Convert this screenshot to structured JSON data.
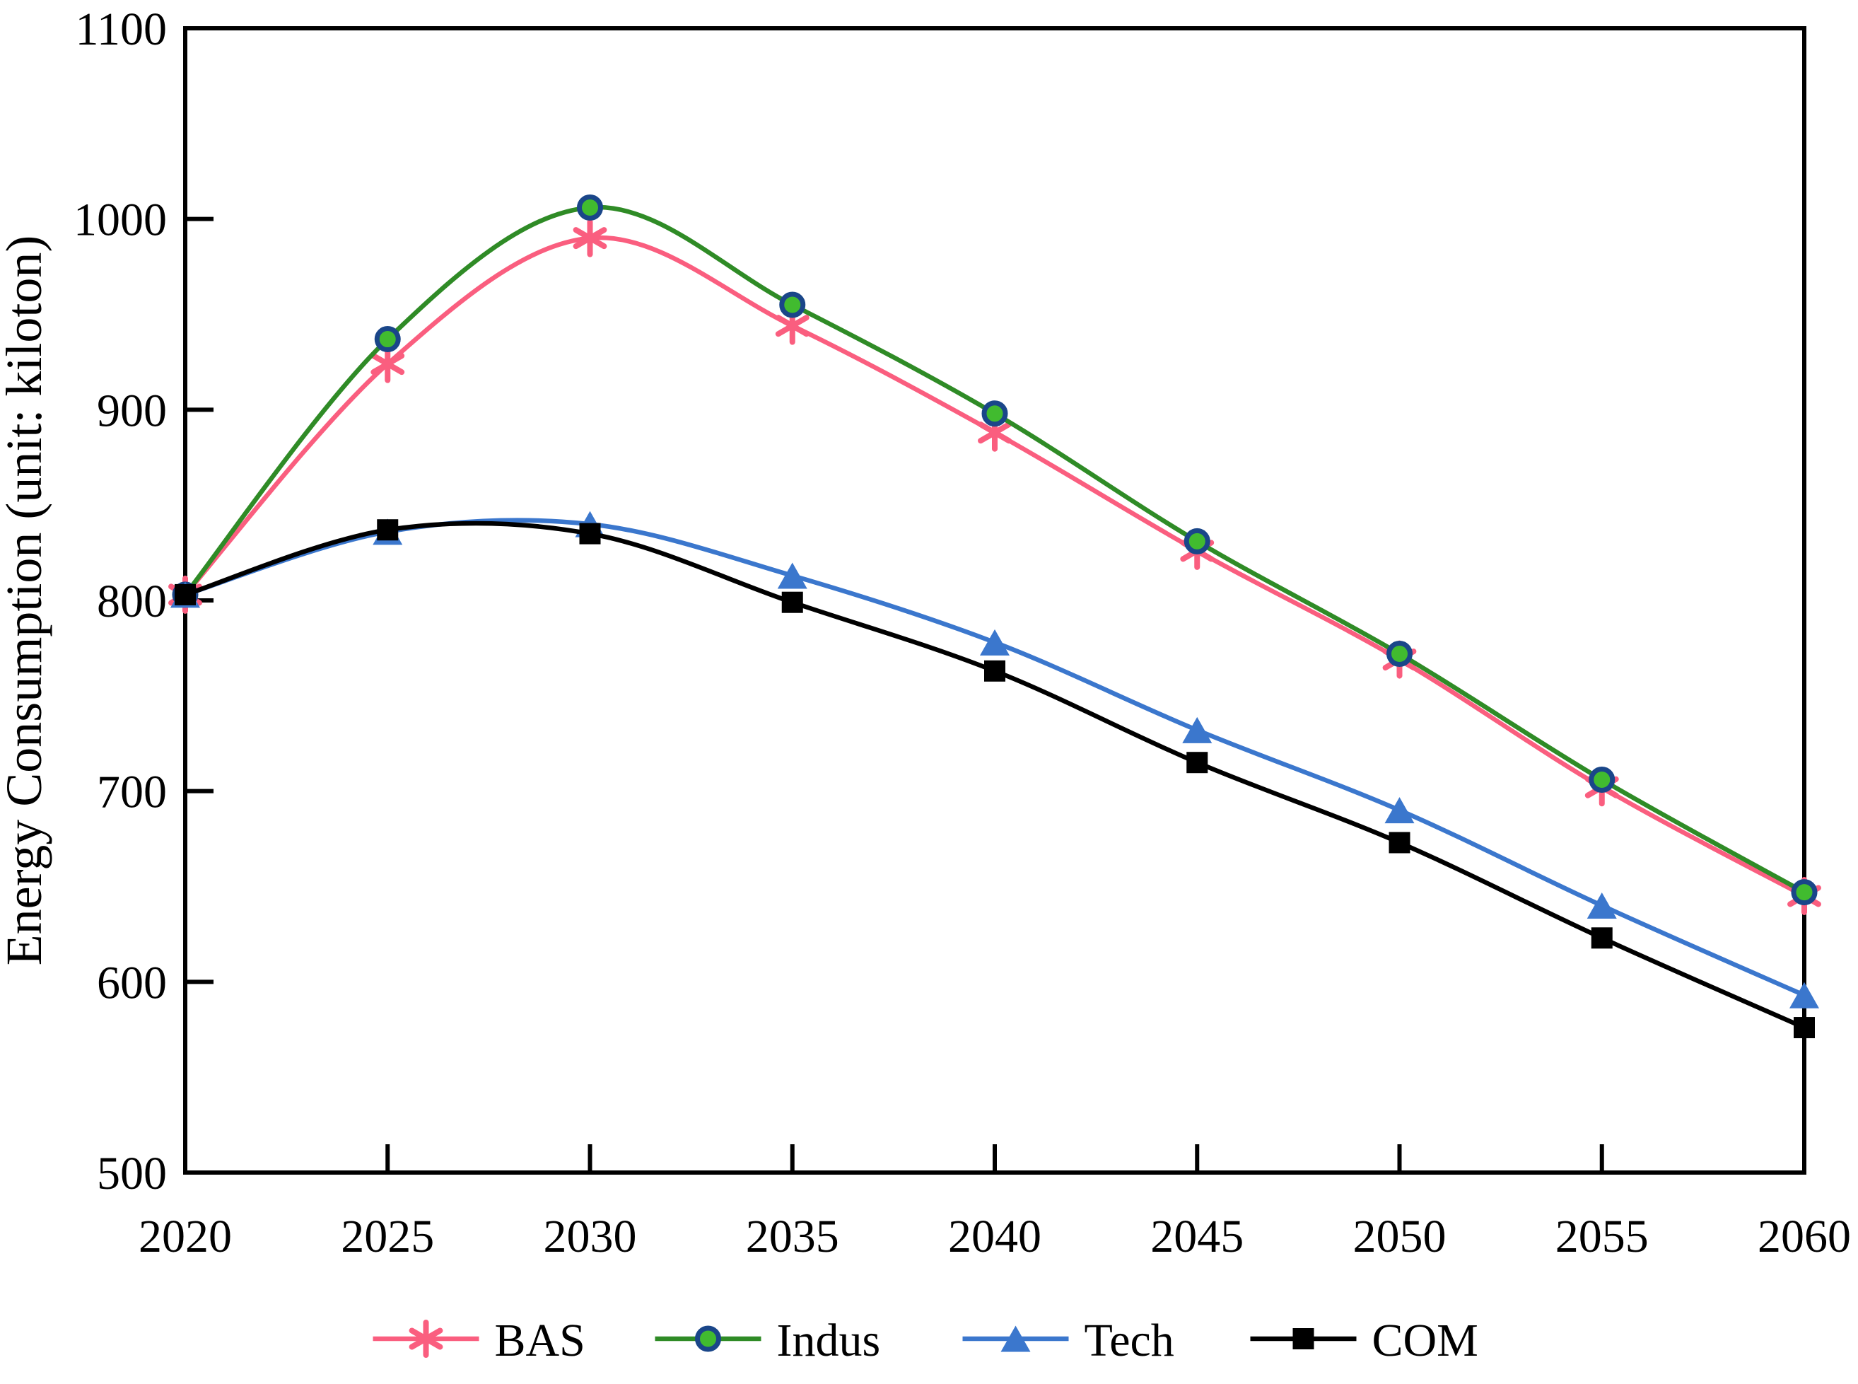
{
  "chart_data": {
    "type": "line",
    "title": "",
    "xlabel": "",
    "ylabel": "Energy Consumption (unit: kiloton)",
    "x": [
      2020,
      2025,
      2030,
      2035,
      2040,
      2045,
      2050,
      2055,
      2060
    ],
    "xlim": [
      2020,
      2060
    ],
    "ylim": [
      500,
      1100
    ],
    "ytick_interval": 100,
    "grid": false,
    "legend_position": "bottom-center",
    "frame": true,
    "tick_direction": "in",
    "series": [
      {
        "name": "BAS",
        "marker": "asterisk",
        "line_color": "#FA5E7F",
        "marker_color": "#FA5E7F",
        "values": [
          803,
          924,
          990,
          944,
          888,
          826,
          769,
          702,
          645
        ]
      },
      {
        "name": "Indus",
        "marker": "circle",
        "line_color": "#2F8B26",
        "marker_fill": "#41BB2F",
        "marker_edge": "#1A4689",
        "values": [
          803,
          937,
          1006,
          955,
          898,
          831,
          772,
          706,
          647
        ]
      },
      {
        "name": "Tech",
        "marker": "triangle-up",
        "line_color": "#3B77CD",
        "marker_color": "#3B77CD",
        "values": [
          803,
          836,
          840,
          813,
          778,
          732,
          690,
          640,
          593
        ]
      },
      {
        "name": "COM",
        "marker": "square",
        "line_color": "#000000",
        "marker_color": "#000000",
        "values": [
          803,
          837,
          835,
          799,
          763,
          715,
          673,
          623,
          576
        ]
      }
    ]
  }
}
